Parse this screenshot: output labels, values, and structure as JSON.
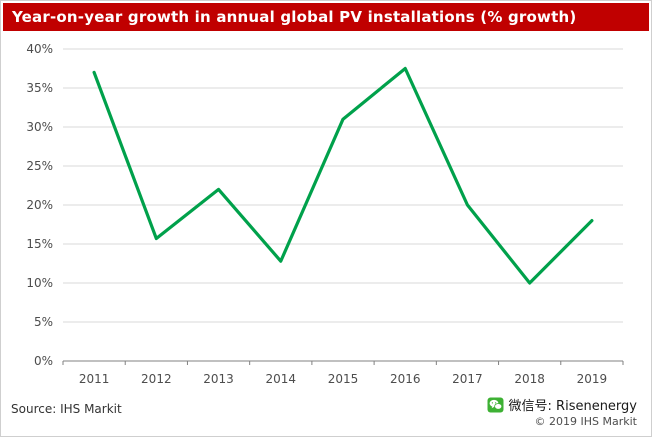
{
  "header": {
    "title": "Year-on-year growth in annual global PV installations (% growth)"
  },
  "footer": {
    "source": "Source: IHS Markit",
    "wechat": "微信号: Risenenergy",
    "copyright": "© 2019 IHS Markit"
  },
  "colors": {
    "title_bar_red": "#c00000",
    "line_green": "#00a14b",
    "grid_gray": "#d9d9d9",
    "axis_gray": "#808080",
    "label_gray": "#4d4d4d"
  },
  "chart_data": {
    "type": "line",
    "title": "Year-on-year growth in annual global PV installations (% growth)",
    "categories": [
      "2011",
      "2012",
      "2013",
      "2014",
      "2015",
      "2016",
      "2017",
      "2018",
      "2019"
    ],
    "values": [
      37,
      15.7,
      22,
      12.8,
      31,
      37.5,
      20,
      10,
      18
    ],
    "xlabel": "",
    "ylabel": "",
    "ylim": [
      0,
      40
    ],
    "yticks": [
      0,
      5,
      10,
      15,
      20,
      25,
      30,
      35,
      40
    ],
    "ytick_format": "percent",
    "grid": true,
    "legend": "none",
    "line_color": "#00a14b"
  }
}
